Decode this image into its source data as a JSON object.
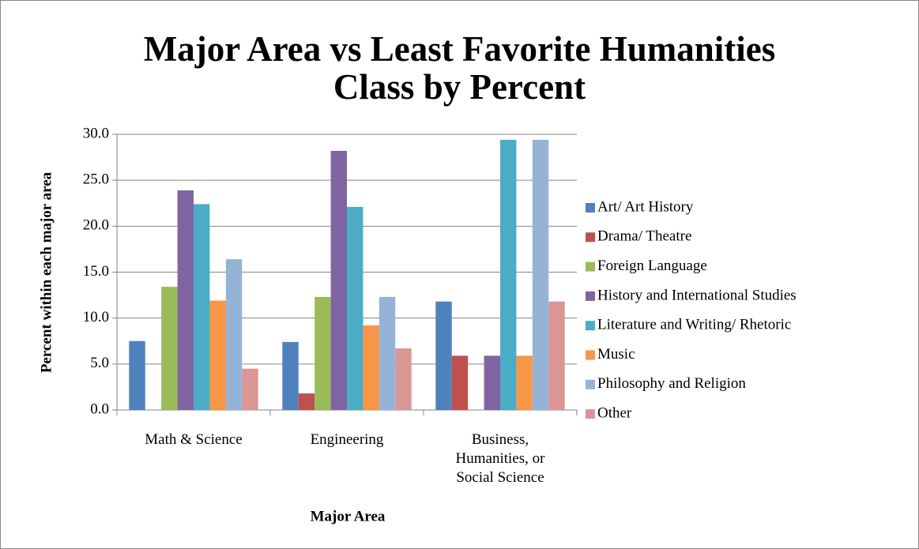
{
  "chart_data": {
    "type": "bar",
    "title": "Major Area vs Least Favorite Humanities Class by Percent",
    "x_label": "Major Area",
    "y_label": "Percent within each major area",
    "categories": [
      "Math & Science",
      "Engineering",
      "Business, Humanities, or Social Science"
    ],
    "series": [
      {
        "name": "Art/ Art History",
        "color": "#4F81BD",
        "values": [
          7.5,
          7.4,
          11.8
        ]
      },
      {
        "name": "Drama/ Theatre",
        "color": "#C0504D",
        "values": [
          0,
          1.8,
          5.9
        ]
      },
      {
        "name": "Foreign Language",
        "color": "#9BBB59",
        "values": [
          13.4,
          12.3,
          0
        ]
      },
      {
        "name": "History and International Studies",
        "color": "#8064A2",
        "values": [
          23.9,
          28.2,
          5.9
        ]
      },
      {
        "name": "Literature and Writing/ Rhetoric",
        "color": "#4BACC6",
        "values": [
          22.4,
          22.1,
          29.4
        ]
      },
      {
        "name": "Music",
        "color": "#F79646",
        "values": [
          11.9,
          9.2,
          5.9
        ]
      },
      {
        "name": "Philosophy and Religion",
        "color": "#95B3D7",
        "values": [
          16.4,
          12.3,
          29.4
        ]
      },
      {
        "name": "Other",
        "color": "#D99694",
        "values": [
          4.5,
          6.7,
          11.8
        ]
      }
    ],
    "ylim": [
      0,
      30
    ],
    "yticks": [
      {
        "value": 0,
        "label": "0.0"
      },
      {
        "value": 5,
        "label": "5.0"
      },
      {
        "value": 10,
        "label": "10.0"
      },
      {
        "value": 15,
        "label": "15.0"
      },
      {
        "value": 20,
        "label": "20.0"
      },
      {
        "value": 25,
        "label": "25.0"
      },
      {
        "value": 30,
        "label": "30.0"
      }
    ],
    "grid": true,
    "legend": "right"
  }
}
